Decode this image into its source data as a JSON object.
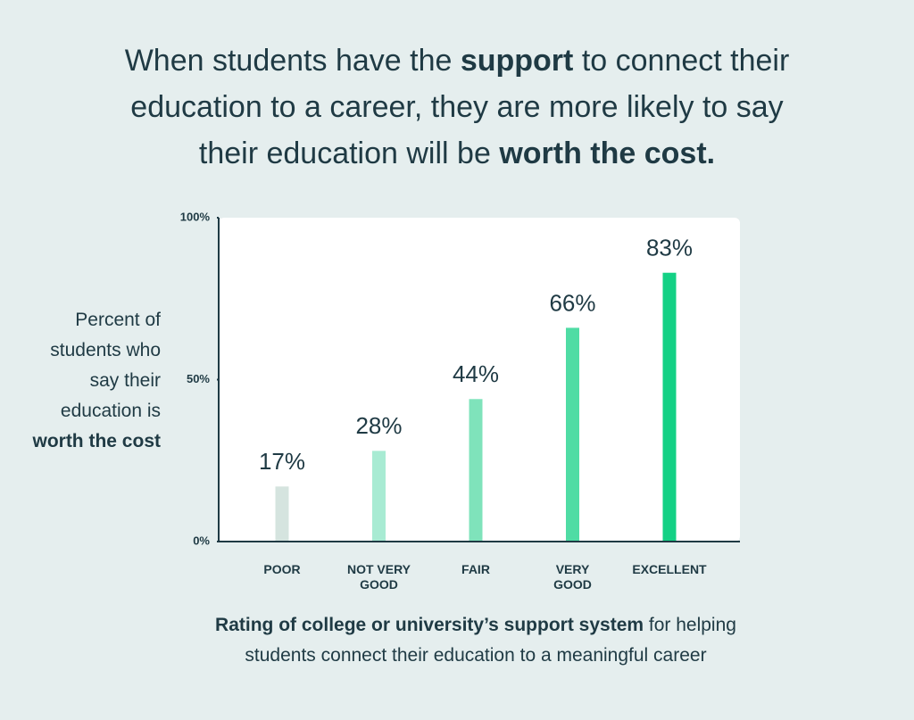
{
  "chart_data": {
    "type": "bar",
    "title": [
      {
        "text": "When students have the ",
        "bold": false
      },
      {
        "text": "support",
        "bold": true
      },
      {
        "text": " to connect their\neducation to a career, they are more likely to say\ntheir education will be ",
        "bold": false
      },
      {
        "text": "worth the cost.",
        "bold": true
      }
    ],
    "y_label": [
      {
        "text": "Percent of\nstudents who\nsay their\neducation is\n",
        "bold": false
      },
      {
        "text": "worth the cost",
        "bold": true
      }
    ],
    "x_label": [
      {
        "text": "Rating of college or university’s support system",
        "bold": true
      },
      {
        "text": " for helping\nstudents connect their education to a meaningful career",
        "bold": false
      }
    ],
    "categories": [
      "POOR",
      "NOT VERY\nGOOD",
      "FAIR",
      "VERY\nGOOD",
      "EXCELLENT"
    ],
    "values": [
      17,
      28,
      44,
      66,
      83
    ],
    "value_labels": [
      "17%",
      "28%",
      "44%",
      "66%",
      "83%"
    ],
    "colors": [
      "#d5e4df",
      "#a8ebd3",
      "#7fe3bb",
      "#4fdca4",
      "#14d185"
    ],
    "ylim": [
      0,
      100
    ],
    "yticks": [
      {
        "value": 0,
        "label": "0%"
      },
      {
        "value": 50,
        "label": "50%"
      },
      {
        "value": 100,
        "label": "100%"
      }
    ]
  }
}
